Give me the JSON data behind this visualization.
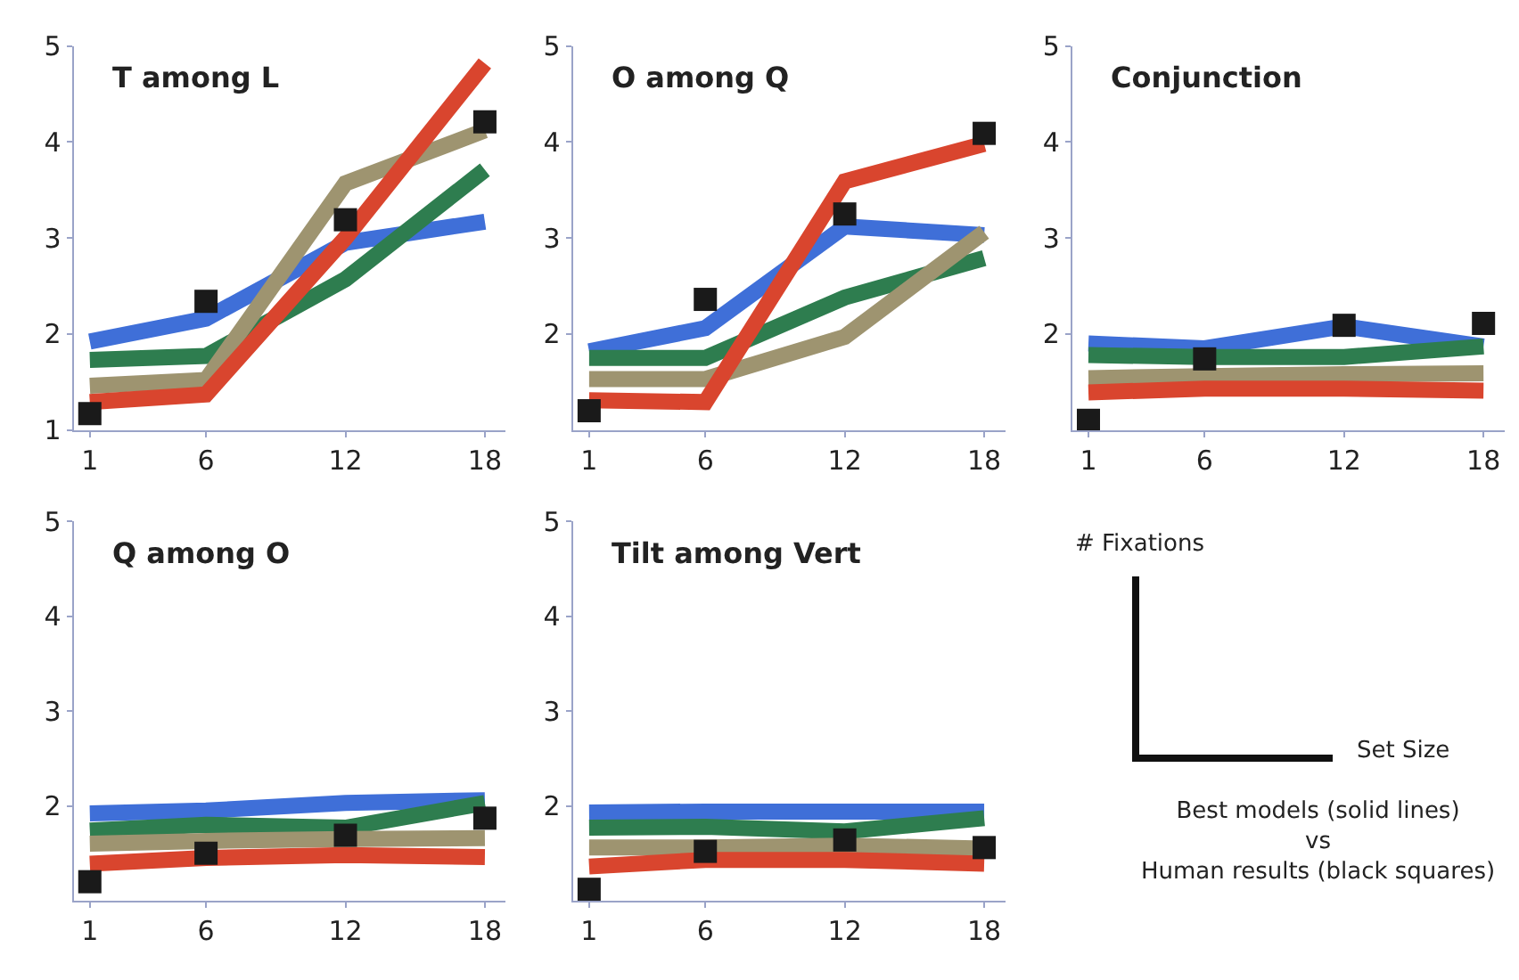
{
  "chart_data": [
    {
      "type": "line",
      "title": "T among L",
      "x": [
        1,
        6,
        12,
        18
      ],
      "xlim": [
        0.3,
        18.9
      ],
      "xticks": [
        1,
        6,
        12,
        18
      ],
      "ylim": [
        1,
        5
      ],
      "yticks": [
        1,
        2,
        3,
        4,
        5
      ],
      "line_style": "solid",
      "series": [
        {
          "color": "#3f6fd8",
          "values": [
            1.92,
            2.16,
            2.95,
            3.17
          ]
        },
        {
          "color": "#2e7d4f",
          "values": [
            1.73,
            1.77,
            2.57,
            3.71
          ]
        },
        {
          "color": "#9e9470",
          "values": [
            1.46,
            1.52,
            3.57,
            4.12
          ]
        },
        {
          "color": "#d9452e",
          "values": [
            1.29,
            1.37,
            3.0,
            4.82
          ]
        },
        {
          "type": "scatter",
          "marker": "square",
          "color": "#1a1a1a",
          "values": [
            1.17,
            2.34,
            3.19,
            4.21
          ]
        }
      ]
    },
    {
      "type": "line",
      "title": "O among Q",
      "x": [
        1,
        6,
        12,
        18
      ],
      "xlim": [
        0.3,
        18.9
      ],
      "xticks": [
        1,
        6,
        12,
        18
      ],
      "ylim": [
        1,
        5
      ],
      "yticks": [
        2,
        3,
        4,
        5
      ],
      "line_style": "solid",
      "series": [
        {
          "color": "#3f6fd8",
          "values": [
            1.82,
            2.06,
            3.12,
            3.03
          ]
        },
        {
          "color": "#2e7d4f",
          "values": [
            1.75,
            1.75,
            2.38,
            2.79
          ]
        },
        {
          "color": "#9e9470",
          "values": [
            1.53,
            1.53,
            1.97,
            3.06
          ]
        },
        {
          "color": "#d9452e",
          "values": [
            1.31,
            1.29,
            3.59,
            3.98
          ]
        },
        {
          "type": "scatter",
          "marker": "square",
          "color": "#1a1a1a",
          "values": [
            1.2,
            2.36,
            3.25,
            4.09
          ]
        }
      ]
    },
    {
      "type": "line",
      "title": "Conjunction",
      "x": [
        1,
        6,
        12,
        18
      ],
      "xlim": [
        0.3,
        18.9
      ],
      "xticks": [
        1,
        6,
        12,
        18
      ],
      "ylim": [
        1,
        5
      ],
      "yticks": [
        2,
        3,
        4,
        5
      ],
      "line_style": "solid",
      "series": [
        {
          "color": "#3f6fd8",
          "values": [
            1.9,
            1.85,
            2.08,
            1.87
          ]
        },
        {
          "color": "#2e7d4f",
          "values": [
            1.78,
            1.76,
            1.76,
            1.87
          ]
        },
        {
          "color": "#9e9470",
          "values": [
            1.54,
            1.56,
            1.58,
            1.59
          ]
        },
        {
          "color": "#d9452e",
          "values": [
            1.39,
            1.43,
            1.43,
            1.41
          ]
        },
        {
          "type": "scatter",
          "marker": "square",
          "color": "#1a1a1a",
          "values": [
            1.1,
            1.74,
            2.09,
            2.11
          ]
        }
      ]
    },
    {
      "type": "line",
      "title": "Q among O",
      "x": [
        1,
        6,
        12,
        18
      ],
      "xlim": [
        0.3,
        18.9
      ],
      "xticks": [
        1,
        6,
        12,
        18
      ],
      "ylim": [
        1,
        5
      ],
      "yticks": [
        2,
        3,
        4,
        5
      ],
      "line_style": "solid",
      "series": [
        {
          "color": "#3f6fd8",
          "values": [
            1.92,
            1.95,
            2.03,
            2.06
          ]
        },
        {
          "color": "#2e7d4f",
          "values": [
            1.74,
            1.8,
            1.77,
            2.03
          ]
        },
        {
          "color": "#9e9470",
          "values": [
            1.6,
            1.63,
            1.65,
            1.66
          ]
        },
        {
          "color": "#d9452e",
          "values": [
            1.39,
            1.45,
            1.48,
            1.46
          ]
        },
        {
          "type": "scatter",
          "marker": "square",
          "color": "#1a1a1a",
          "values": [
            1.2,
            1.5,
            1.69,
            1.87
          ]
        }
      ]
    },
    {
      "type": "line",
      "title": "Tilt among Vert",
      "x": [
        1,
        6,
        12,
        18
      ],
      "xlim": [
        0.3,
        18.9
      ],
      "xticks": [
        1,
        6,
        12,
        18
      ],
      "ylim": [
        1,
        5
      ],
      "yticks": [
        2,
        3,
        4,
        5
      ],
      "line_style": "solid",
      "series": [
        {
          "color": "#3f6fd8",
          "values": [
            1.93,
            1.94,
            1.94,
            1.94
          ]
        },
        {
          "color": "#2e7d4f",
          "values": [
            1.77,
            1.78,
            1.73,
            1.87
          ]
        },
        {
          "color": "#9e9470",
          "values": [
            1.56,
            1.56,
            1.58,
            1.55
          ]
        },
        {
          "color": "#d9452e",
          "values": [
            1.36,
            1.43,
            1.43,
            1.39
          ]
        },
        {
          "type": "scatter",
          "marker": "square",
          "color": "#1a1a1a",
          "values": [
            1.12,
            1.52,
            1.64,
            1.56
          ]
        }
      ]
    },
    {
      "type": "other",
      "xlabel": "Set Size",
      "ylabel": "# Fixations",
      "annotations": [
        "Best models (solid lines)\nvs\nHuman results (black squares)"
      ]
    }
  ]
}
